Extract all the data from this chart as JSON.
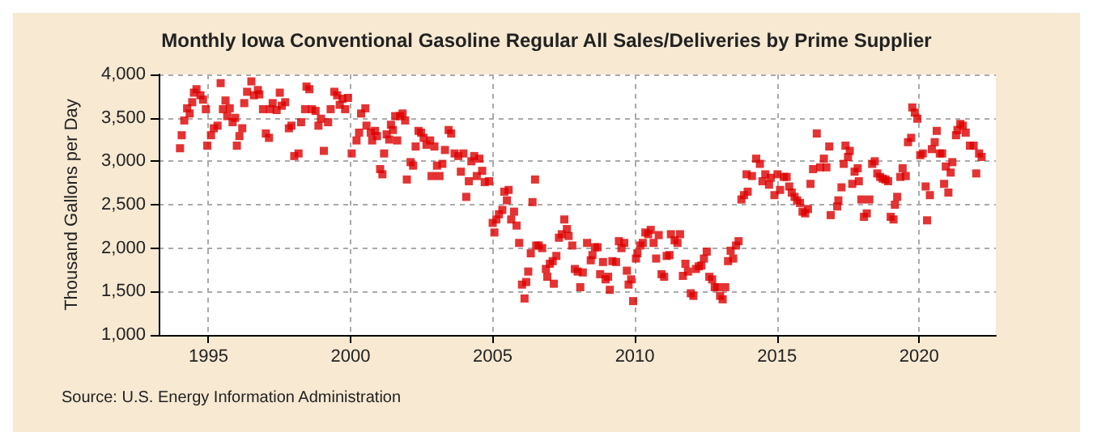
{
  "chart_data": {
    "type": "scatter",
    "title": "Monthly Iowa Conventional Gasoline Regular All Sales/Deliveries by Prime Supplier",
    "ylabel": "Thousand Gallons per Day",
    "annotations": [
      "Source: U.S. Energy Information Administration"
    ],
    "marker": "square",
    "grid": true,
    "xlim": [
      1993.25,
      2022.7
    ],
    "xticks": [
      1995,
      2000,
      2005,
      2010,
      2015,
      2020
    ],
    "ylim": [
      1000,
      4000
    ],
    "yticks": [
      {
        "value": 1000,
        "label": "1,000"
      },
      {
        "value": 1500,
        "label": "1,500"
      },
      {
        "value": 2000,
        "label": "2,000"
      },
      {
        "value": 2500,
        "label": "2,500"
      },
      {
        "value": 3000,
        "label": "3,000"
      },
      {
        "value": 3500,
        "label": "3,500"
      },
      {
        "value": 4000,
        "label": "4,000"
      }
    ],
    "series": [
      {
        "color": "#dd0000",
        "x": [
          1994.0,
          1994.06,
          1994.15,
          1994.25,
          1994.34,
          1994.43,
          1994.49,
          1994.58,
          1994.72,
          1994.81,
          1994.91,
          1994.96,
          1995.09,
          1995.19,
          1995.32,
          1995.43,
          1995.51,
          1995.6,
          1995.66,
          1995.75,
          1995.85,
          1995.94,
          1996.0,
          1996.09,
          1996.19,
          1996.26,
          1996.36,
          1996.51,
          1996.6,
          1996.74,
          1996.79,
          1996.92,
          1997.02,
          1997.13,
          1997.17,
          1997.26,
          1997.4,
          1997.51,
          1997.58,
          1997.7,
          1997.83,
          1997.92,
          1998.02,
          1998.17,
          1998.26,
          1998.4,
          1998.45,
          1998.55,
          1998.64,
          1998.77,
          1998.87,
          1998.96,
          1999.06,
          1999.21,
          1999.3,
          1999.43,
          1999.53,
          1999.62,
          1999.72,
          1999.81,
          1999.91,
          2000.04,
          2000.21,
          2000.3,
          2000.37,
          2000.52,
          2000.56,
          2000.71,
          2000.76,
          2000.86,
          2000.93,
          2001.04,
          2001.12,
          2001.18,
          2001.27,
          2001.36,
          2001.42,
          2001.49,
          2001.57,
          2001.64,
          2001.74,
          2001.83,
          2001.92,
          2001.98,
          2002.11,
          2002.2,
          2002.29,
          2002.39,
          2002.48,
          2002.57,
          2002.67,
          2002.8,
          2002.85,
          2002.95,
          2003.04,
          2003.13,
          2003.23,
          2003.32,
          2003.45,
          2003.54,
          2003.66,
          2003.79,
          2003.88,
          2003.97,
          2004.07,
          2004.16,
          2004.25,
          2004.35,
          2004.44,
          2004.53,
          2004.63,
          2004.72,
          2004.87,
          2005.0,
          2005.06,
          2005.13,
          2005.22,
          2005.34,
          2005.41,
          2005.5,
          2005.56,
          2005.65,
          2005.75,
          2005.84,
          2005.93,
          2006.03,
          2006.12,
          2006.18,
          2006.25,
          2006.34,
          2006.4,
          2006.49,
          2006.53,
          2006.62,
          2006.74,
          2006.87,
          2006.92,
          2007.01,
          2007.11,
          2007.15,
          2007.24,
          2007.33,
          2007.43,
          2007.52,
          2007.61,
          2007.67,
          2007.8,
          2007.89,
          2007.99,
          2008.08,
          2008.17,
          2008.32,
          2008.45,
          2008.51,
          2008.6,
          2008.69,
          2008.78,
          2008.88,
          2008.97,
          2009.06,
          2009.12,
          2009.21,
          2009.34,
          2009.44,
          2009.53,
          2009.63,
          2009.72,
          2009.78,
          2009.87,
          2009.94,
          2010.04,
          2010.09,
          2010.19,
          2010.28,
          2010.37,
          2010.47,
          2010.56,
          2010.66,
          2010.75,
          2010.84,
          2010.94,
          2011.03,
          2011.12,
          2011.22,
          2011.27,
          2011.4,
          2011.5,
          2011.59,
          2011.69,
          2011.78,
          2011.87,
          2011.97,
          2012.06,
          2012.15,
          2012.25,
          2012.34,
          2012.43,
          2012.53,
          2012.62,
          2012.72,
          2012.81,
          2012.9,
          2013.0,
          2013.09,
          2013.18,
          2013.28,
          2013.37,
          2013.46,
          2013.56,
          2013.65,
          2013.75,
          2013.84,
          2013.93,
          2013.97,
          2014.12,
          2014.27,
          2014.4,
          2014.49,
          2014.59,
          2014.72,
          2014.78,
          2014.91,
          2015.02,
          2015.11,
          2015.24,
          2015.34,
          2015.43,
          2015.52,
          2015.62,
          2015.71,
          2015.81,
          2015.9,
          2015.99,
          2016.09,
          2016.18,
          2016.27,
          2016.4,
          2016.52,
          2016.65,
          2016.74,
          2016.84,
          2016.89,
          2017.12,
          2017.16,
          2017.27,
          2017.35,
          2017.41,
          2017.5,
          2017.56,
          2017.65,
          2017.73,
          2017.84,
          2017.88,
          2017.97,
          2018.06,
          2018.16,
          2018.25,
          2018.35,
          2018.44,
          2018.53,
          2018.63,
          2018.72,
          2018.82,
          2018.91,
          2019.0,
          2019.1,
          2019.15,
          2019.23,
          2019.34,
          2019.42,
          2019.53,
          2019.61,
          2019.72,
          2019.76,
          2019.85,
          2019.94,
          2020.04,
          2020.13,
          2020.23,
          2020.28,
          2020.38,
          2020.45,
          2020.55,
          2020.62,
          2020.73,
          2020.81,
          2020.88,
          2020.94,
          2021.03,
          2021.11,
          2021.17,
          2021.3,
          2021.35,
          2021.45,
          2021.54,
          2021.64,
          2021.79,
          2021.92,
          2022.01,
          2022.11,
          2022.2
        ],
        "values": [
          3150,
          3300,
          3470,
          3610,
          3550,
          3680,
          3790,
          3830,
          3760,
          3710,
          3600,
          3180,
          3300,
          3380,
          3410,
          3900,
          3600,
          3700,
          3520,
          3610,
          3450,
          3500,
          3180,
          3290,
          3380,
          3670,
          3800,
          3920,
          3760,
          3820,
          3770,
          3600,
          3320,
          3270,
          3600,
          3670,
          3590,
          3790,
          3640,
          3680,
          3380,
          3410,
          3060,
          3090,
          3450,
          3600,
          3860,
          3830,
          3600,
          3580,
          3410,
          3490,
          3120,
          3450,
          3600,
          3800,
          3760,
          3650,
          3720,
          3600,
          3730,
          3090,
          3240,
          3330,
          3550,
          3610,
          3410,
          3330,
          3240,
          3350,
          3290,
          2910,
          2850,
          3090,
          3310,
          3250,
          3420,
          3360,
          3520,
          3240,
          3520,
          3550,
          3470,
          2790,
          2990,
          2950,
          3170,
          3350,
          3330,
          3270,
          3190,
          3240,
          2830,
          3170,
          2950,
          2830,
          2970,
          3130,
          3360,
          3320,
          3090,
          3060,
          2880,
          3090,
          2590,
          2770,
          3000,
          3060,
          2830,
          3030,
          2890,
          2760,
          2770,
          2290,
          2180,
          2330,
          2390,
          2440,
          2650,
          2550,
          2670,
          2330,
          2420,
          2260,
          2060,
          1580,
          1420,
          1610,
          1730,
          1940,
          2530,
          2790,
          2030,
          2030,
          2000,
          1760,
          1670,
          1820,
          1850,
          1590,
          1910,
          2120,
          2160,
          2330,
          2220,
          2140,
          2030,
          1760,
          1730,
          1550,
          1720,
          2060,
          1860,
          1920,
          2010,
          2010,
          1700,
          1840,
          1640,
          1670,
          1520,
          1850,
          1840,
          2080,
          2000,
          2060,
          1740,
          1580,
          1640,
          1390,
          1880,
          1940,
          2030,
          2060,
          2180,
          2160,
          2210,
          2060,
          1880,
          2150,
          1700,
          1670,
          1910,
          1920,
          2160,
          2090,
          2060,
          2160,
          1680,
          1820,
          1730,
          1480,
          1450,
          1760,
          1790,
          1800,
          1880,
          1960,
          1670,
          1640,
          1550,
          1550,
          1450,
          1410,
          1550,
          1850,
          1970,
          1880,
          2030,
          2080,
          2560,
          2610,
          2850,
          2650,
          2830,
          3030,
          2970,
          2770,
          2850,
          2730,
          2810,
          2610,
          2850,
          2670,
          2820,
          2820,
          2710,
          2640,
          2590,
          2550,
          2520,
          2420,
          2400,
          2450,
          2740,
          2910,
          3320,
          2930,
          3030,
          2930,
          3170,
          2380,
          2480,
          2550,
          2700,
          2970,
          3180,
          3050,
          3120,
          2740,
          2880,
          2920,
          2770,
          2560,
          2360,
          2400,
          2560,
          2970,
          3000,
          2860,
          2820,
          2800,
          2790,
          2770,
          2360,
          2330,
          2500,
          2590,
          2820,
          2920,
          2830,
          3220,
          3270,
          3620,
          3560,
          3490,
          3070,
          3090,
          2710,
          2320,
          2610,
          3140,
          3220,
          3350,
          3090,
          3090,
          2740,
          2940,
          2640,
          2870,
          2990,
          3300,
          3360,
          3430,
          3410,
          3330,
          3180,
          3180,
          2860,
          3090,
          3050
        ]
      }
    ]
  }
}
